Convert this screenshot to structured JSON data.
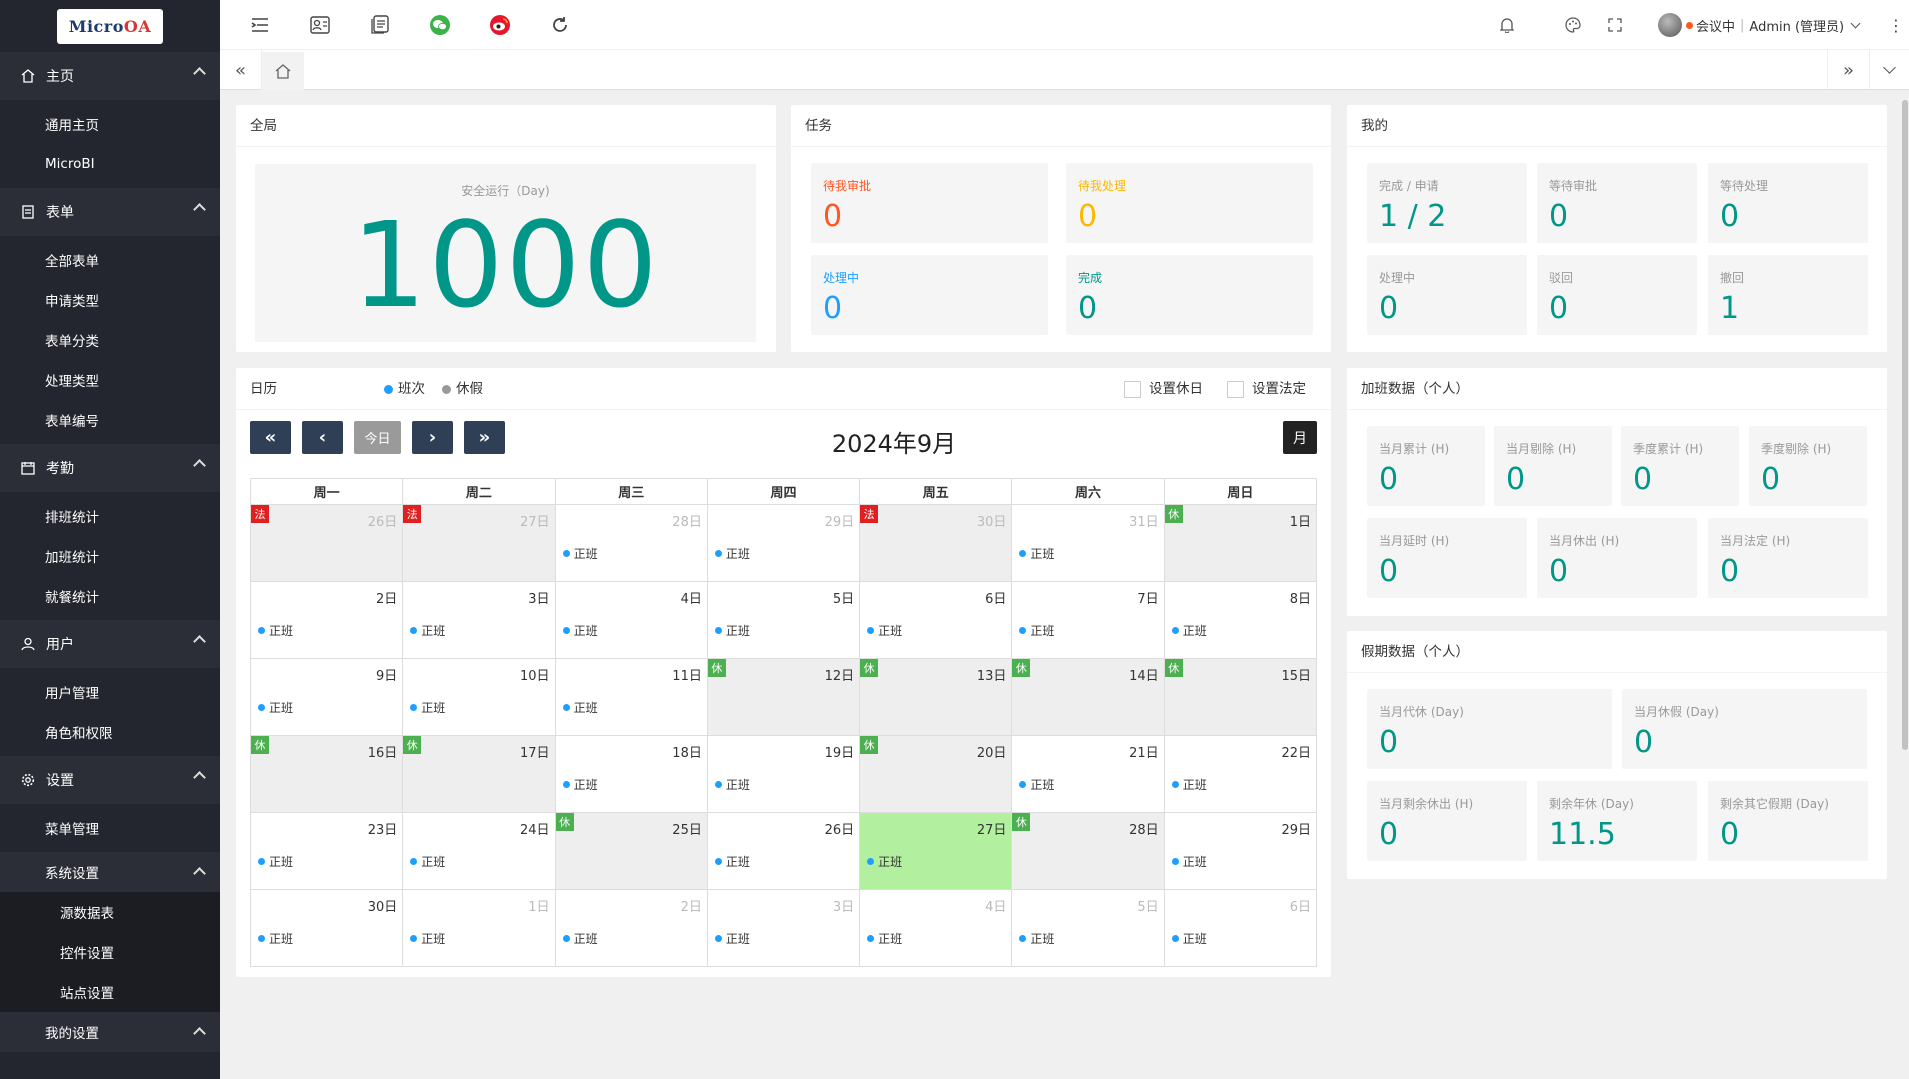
{
  "sidebar": {
    "logo": "MicroOA",
    "groups": [
      {
        "label": "主页",
        "icon": "home-icon",
        "items": [
          "通用主页",
          "MicroBI"
        ]
      },
      {
        "label": "表单",
        "icon": "form-icon",
        "items": [
          "全部表单",
          "申请类型",
          "表单分类",
          "处理类型",
          "表单编号"
        ]
      },
      {
        "label": "考勤",
        "icon": "calendar-icon",
        "items": [
          "排班统计",
          "加班统计",
          "就餐统计"
        ]
      },
      {
        "label": "用户",
        "icon": "user-icon",
        "items": [
          "用户管理",
          "角色和权限"
        ]
      },
      {
        "label": "设置",
        "icon": "gear-icon",
        "items": [
          "菜单管理"
        ]
      }
    ],
    "system": {
      "label": "系统设置",
      "items": [
        "源数据表",
        "控件设置",
        "站点设置"
      ]
    },
    "mine": {
      "label": "我的设置"
    }
  },
  "topbar": {
    "status": "会议中",
    "user": "Admin (管理员)",
    "status_color": "#ff5722"
  },
  "global": {
    "title": "全局",
    "label": "安全运行（Day)",
    "value": "1000"
  },
  "tasks": {
    "title": "任务",
    "items": [
      {
        "label": "待我审批",
        "value": "0"
      },
      {
        "label": "待我处理",
        "value": "0"
      },
      {
        "label": "处理中",
        "value": "0"
      },
      {
        "label": "完成",
        "value": "0"
      }
    ]
  },
  "mine": {
    "title": "我的",
    "items": [
      {
        "label": "完成 / 申请",
        "value": "1 / 2"
      },
      {
        "label": "等待审批",
        "value": "0"
      },
      {
        "label": "等待处理",
        "value": "0"
      },
      {
        "label": "处理中",
        "value": "0"
      },
      {
        "label": "驳回",
        "value": "0"
      },
      {
        "label": "撤回",
        "value": "1"
      }
    ]
  },
  "overtime": {
    "title": "加班数据（个人）",
    "items": [
      {
        "label": "当月累计 (H)",
        "value": "0"
      },
      {
        "label": "当月剔除 (H)",
        "value": "0"
      },
      {
        "label": "季度累计 (H)",
        "value": "0"
      },
      {
        "label": "季度剔除 (H)",
        "value": "0"
      },
      {
        "label": "当月延时 (H)",
        "value": "0"
      },
      {
        "label": "当月休出 (H)",
        "value": "0"
      },
      {
        "label": "当月法定 (H)",
        "value": "0"
      }
    ]
  },
  "leave": {
    "title": "假期数据（个人）",
    "items": [
      {
        "label": "当月代休 (Day)",
        "value": "0"
      },
      {
        "label": "当月休假 (Day)",
        "value": "0"
      },
      {
        "label": "当月剩余休出 (H)",
        "value": "0"
      },
      {
        "label": "剩余年休 (Day)",
        "value": "11.5"
      },
      {
        "label": "剩余其它假期 (Day)",
        "value": "0"
      }
    ]
  },
  "calendar": {
    "title": "日历",
    "legend_shift": "班次",
    "legend_holiday": "休假",
    "set_rest": "设置休日",
    "set_legal": "设置法定",
    "today_btn": "今日",
    "month_title": "2024年9月",
    "view_btn": "月",
    "weekdays": [
      "周一",
      "周二",
      "周三",
      "周四",
      "周五",
      "周六",
      "周日"
    ],
    "shift_label": "正班",
    "weeks": [
      [
        {
          "d": "26日",
          "o": 1,
          "t": "法",
          "s": 0,
          "h": 1
        },
        {
          "d": "27日",
          "o": 1,
          "t": "法",
          "s": 0,
          "h": 1
        },
        {
          "d": "28日",
          "o": 1,
          "s": 1
        },
        {
          "d": "29日",
          "o": 1,
          "s": 1
        },
        {
          "d": "30日",
          "o": 1,
          "t": "法",
          "s": 0,
          "h": 1
        },
        {
          "d": "31日",
          "o": 1,
          "s": 1
        },
        {
          "d": "1日",
          "t": "休",
          "s": 0,
          "h": 1
        }
      ],
      [
        {
          "d": "2日",
          "s": 1
        },
        {
          "d": "3日",
          "s": 1
        },
        {
          "d": "4日",
          "s": 1
        },
        {
          "d": "5日",
          "s": 1
        },
        {
          "d": "6日",
          "s": 1
        },
        {
          "d": "7日",
          "s": 1
        },
        {
          "d": "8日",
          "s": 1
        }
      ],
      [
        {
          "d": "9日",
          "s": 1
        },
        {
          "d": "10日",
          "s": 1
        },
        {
          "d": "11日",
          "s": 1
        },
        {
          "d": "12日",
          "t": "休",
          "s": 0,
          "h": 1
        },
        {
          "d": "13日",
          "t": "休",
          "s": 0,
          "h": 1
        },
        {
          "d": "14日",
          "t": "休",
          "s": 0,
          "h": 1
        },
        {
          "d": "15日",
          "t": "休",
          "s": 0,
          "h": 1
        }
      ],
      [
        {
          "d": "16日",
          "t": "休",
          "s": 0,
          "h": 1
        },
        {
          "d": "17日",
          "t": "休",
          "s": 0,
          "h": 1
        },
        {
          "d": "18日",
          "s": 1
        },
        {
          "d": "19日",
          "s": 1
        },
        {
          "d": "20日",
          "t": "休",
          "s": 0,
          "h": 1
        },
        {
          "d": "21日",
          "s": 1
        },
        {
          "d": "22日",
          "s": 1
        }
      ],
      [
        {
          "d": "23日",
          "s": 1
        },
        {
          "d": "24日",
          "s": 1
        },
        {
          "d": "25日",
          "t": "休",
          "s": 0,
          "h": 1
        },
        {
          "d": "26日",
          "s": 1
        },
        {
          "d": "27日",
          "s": 1,
          "today": 1
        },
        {
          "d": "28日",
          "t": "休",
          "s": 0,
          "h": 1
        },
        {
          "d": "29日",
          "s": 1
        }
      ],
      [
        {
          "d": "30日",
          "s": 1
        },
        {
          "d": "1日",
          "o": 1,
          "s": 1
        },
        {
          "d": "2日",
          "o": 1,
          "s": 1
        },
        {
          "d": "3日",
          "o": 1,
          "s": 1
        },
        {
          "d": "4日",
          "o": 1,
          "s": 1
        },
        {
          "d": "5日",
          "o": 1,
          "s": 1
        },
        {
          "d": "6日",
          "o": 1,
          "s": 1
        }
      ]
    ]
  }
}
